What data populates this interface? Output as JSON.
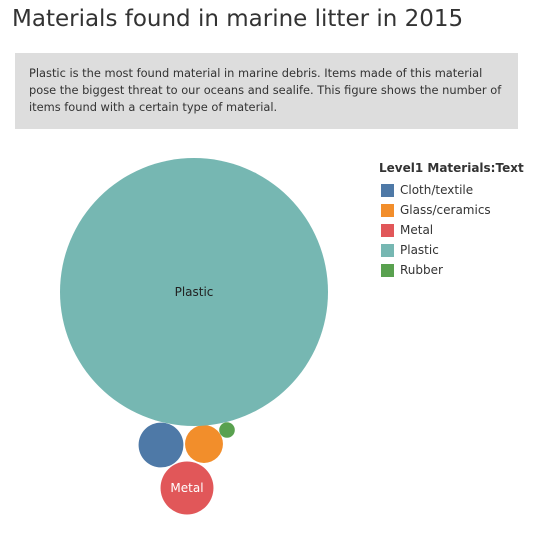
{
  "page": {
    "title": "Materials found in marine litter in 2015",
    "description": "Plastic is the most found material in marine debris. Items made of this material pose the biggest threat to our oceans and sealife. This figure shows the number of items found with a certain type of material."
  },
  "chart_data": {
    "type": "bubble",
    "legend_title": "Level1 Materials:Text",
    "legend_placement": "right",
    "series": [
      {
        "name": "Cloth/textile",
        "color": "#4e79a7",
        "relative_size": 0.028,
        "label": ""
      },
      {
        "name": "Glass/ceramics",
        "color": "#f28e2b",
        "relative_size": 0.02,
        "label": ""
      },
      {
        "name": "Metal",
        "color": "#e15759",
        "relative_size": 0.039,
        "label": "Metal"
      },
      {
        "name": "Plastic",
        "color": "#76b7b2",
        "relative_size": 1.0,
        "label": "Plastic"
      },
      {
        "name": "Rubber",
        "color": "#59a14f",
        "relative_size": 0.0034,
        "label": ""
      }
    ]
  }
}
